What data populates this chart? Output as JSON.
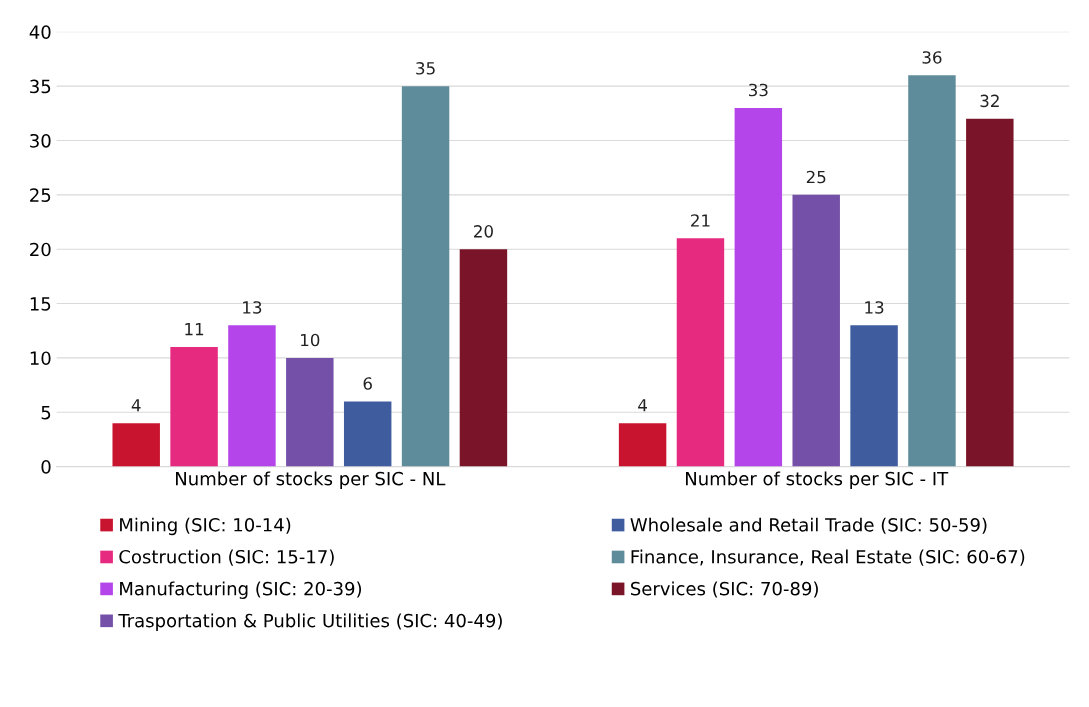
{
  "chart_data": {
    "type": "bar",
    "categories": [
      "Number of stocks per SIC - NL",
      "Number of stocks per SIC - IT"
    ],
    "series": [
      {
        "name": "Mining (SIC: 10-14)",
        "color": "#c8142e",
        "values": [
          4,
          4
        ]
      },
      {
        "name": "Costruction (SIC: 15-17)",
        "color": "#e62a80",
        "values": [
          11,
          21
        ]
      },
      {
        "name": "Manufacturing (SIC: 20-39)",
        "color": "#b445ea",
        "values": [
          13,
          33
        ]
      },
      {
        "name": "Trasportation & Public Utilities (SIC: 40-49)",
        "color": "#7450a8",
        "values": [
          10,
          25
        ]
      },
      {
        "name": "Wholesale and Retail Trade (SIC: 50-59)",
        "color": "#3f5c9e",
        "values": [
          6,
          13
        ]
      },
      {
        "name": "Finance, Insurance, Real Estate (SIC: 60-67)",
        "color": "#5e8c9a",
        "values": [
          35,
          36
        ]
      },
      {
        "name": "Services (SIC: 70-89)",
        "color": "#7a1428",
        "values": [
          20,
          32
        ]
      }
    ],
    "ylim": [
      0,
      40
    ],
    "yticks": [
      0,
      5,
      10,
      15,
      20,
      25,
      30,
      35,
      40
    ],
    "grid": "y",
    "legend": "bottom",
    "data_labels": true
  }
}
